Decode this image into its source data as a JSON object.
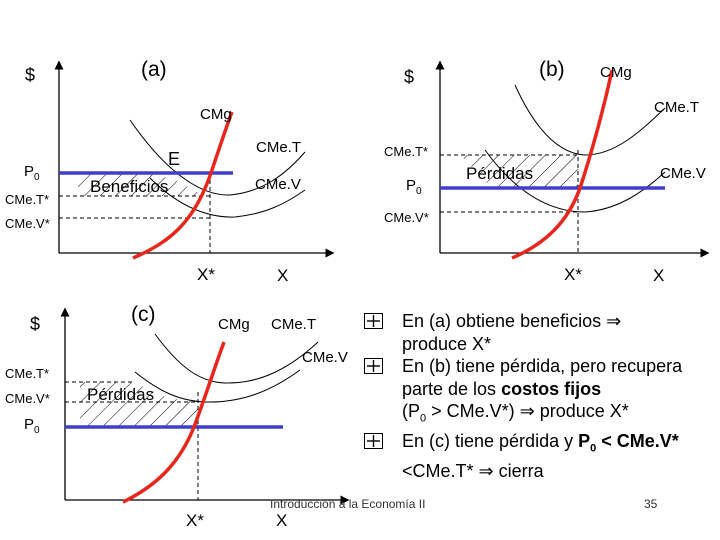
{
  "panel_a": {
    "title": "(a)",
    "y_axis": "$",
    "curve_cmg": "CMg",
    "curve_cmet": "CMe.T",
    "curve_cmev": "CMe.V",
    "point_e": "E",
    "region": "Beneficios",
    "p0_main": "P",
    "p0_sub": "0",
    "cmet_star": "CMe.T*",
    "cmev_star": "CMe.V*",
    "x_star": "X*",
    "x": "X"
  },
  "panel_b": {
    "title": "(b)",
    "y_axis": "$",
    "curve_cmg": "CMg",
    "curve_cmet": "CMe.T",
    "curve_cmev": "CMe.V",
    "region": "Pérdidas",
    "p0_main": "P",
    "p0_sub": "0",
    "cmet_star": "CMe.T*",
    "cmev_star": "CMe.V*",
    "x_star": "X*",
    "x": "X"
  },
  "panel_c": {
    "title": "(c)",
    "y_axis": "$",
    "curve_cmg": "CMg",
    "curve_cmet": "CMe.T",
    "curve_cmev": "CMe.V",
    "region": "Pérdidas",
    "p0_main": "P",
    "p0_sub": "0",
    "cmet_star": "CMe.T*",
    "cmev_star": "CMe.V*",
    "x_star": "X*",
    "x": "X"
  },
  "bullets": {
    "b1_pre": "En (a) obtiene beneficios ",
    "b1_arrow": "⇒",
    "b1_post": " produce X*",
    "b2_pre": "En (b) tiene pérdida",
    "b2_mid1": ", pero recupera parte de los ",
    "b2_bold": "costos fijos",
    "b2_p": "(P",
    "b2_sub": "0",
    "b2_post": " > CMe.V*) ",
    "b2_arrow": "⇒",
    "b2_end": " produce X*",
    "b3_pre": "En (c) tiene pérdida y ",
    "b3_p": "P",
    "b3_sub": "0",
    "b3_post": " < CMe.V*",
    "b3_line2": "<CMe.T* ",
    "b3_arrow": "⇒",
    "b3_end": " cierra"
  },
  "footer": "Introducción a la Economía II",
  "page_number": "35",
  "colors": {
    "price_line": "#3f3fc8",
    "cmg": "#e8261c",
    "curves": "#000000"
  }
}
